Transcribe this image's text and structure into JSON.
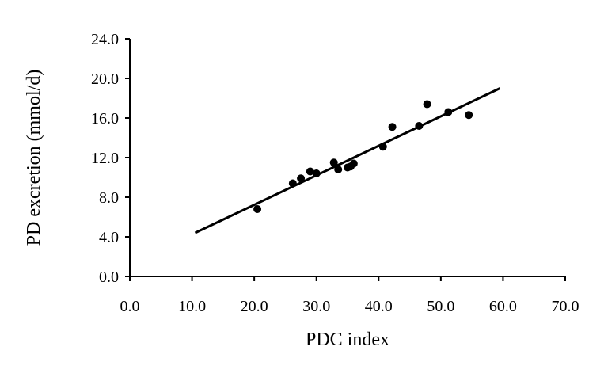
{
  "chart_data": {
    "type": "scatter",
    "xlabel": "PDC index",
    "ylabel": "PD excretion (mmol/d)",
    "xlim": [
      0,
      70
    ],
    "ylim": [
      0,
      24
    ],
    "x_ticks": [
      "0.0",
      "10.0",
      "20.0",
      "30.0",
      "40.0",
      "50.0",
      "60.0",
      "70.0"
    ],
    "y_ticks": [
      "0.0",
      "4.0",
      "8.0",
      "12.0",
      "16.0",
      "20.0",
      "24.0"
    ],
    "grid": false,
    "legend": "none",
    "series": [
      {
        "points": [
          {
            "x": 20.5,
            "y": 6.8
          },
          {
            "x": 26.2,
            "y": 9.4
          },
          {
            "x": 27.5,
            "y": 9.9
          },
          {
            "x": 29.0,
            "y": 10.6
          },
          {
            "x": 30.0,
            "y": 10.4
          },
          {
            "x": 32.8,
            "y": 11.5
          },
          {
            "x": 33.5,
            "y": 10.8
          },
          {
            "x": 35.0,
            "y": 11.0
          },
          {
            "x": 35.5,
            "y": 11.1
          },
          {
            "x": 36.0,
            "y": 11.4
          },
          {
            "x": 40.7,
            "y": 13.1
          },
          {
            "x": 42.2,
            "y": 15.1
          },
          {
            "x": 46.5,
            "y": 15.2
          },
          {
            "x": 47.8,
            "y": 17.4
          },
          {
            "x": 51.2,
            "y": 16.6
          },
          {
            "x": 54.5,
            "y": 16.3
          }
        ]
      }
    ],
    "trendline": {
      "x1": 10.5,
      "y1": 4.4,
      "x2": 59.5,
      "y2": 19.0
    },
    "colors": {
      "marker": "#000000",
      "line": "#000000",
      "axis": "#000000"
    }
  }
}
